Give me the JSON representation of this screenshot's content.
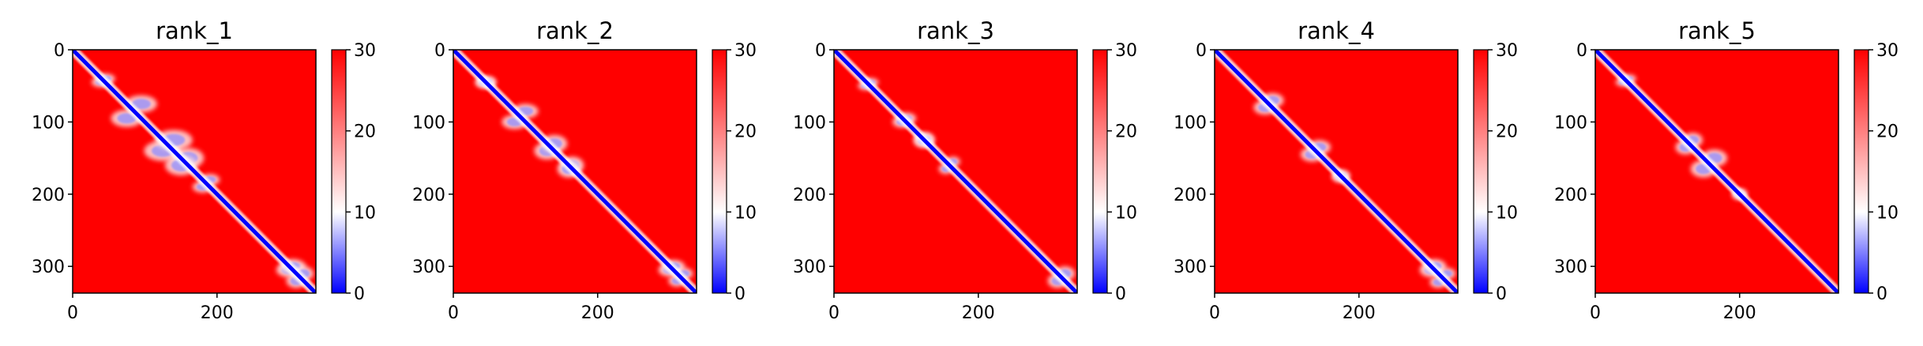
{
  "figure": {
    "colorbar_ticks": [
      "0",
      "10",
      "20",
      "30"
    ],
    "colormap": [
      "#0000ff",
      "#ffffff",
      "#ff0000"
    ]
  },
  "chart_data": [
    {
      "type": "heatmap",
      "title": "rank_1",
      "x_ticks": [
        0,
        200
      ],
      "y_ticks": [
        0,
        100,
        200,
        300
      ],
      "xlim": [
        0,
        337
      ],
      "ylim": [
        337,
        0
      ],
      "colorbar": {
        "vmin": 0,
        "vmax": 30,
        "ticks": [
          0,
          10,
          20,
          30
        ]
      },
      "low_regions": [
        {
          "x": 40,
          "y": 45,
          "rx": 14,
          "ry": 7
        },
        {
          "x": 75,
          "y": 95,
          "rx": 22,
          "ry": 12
        },
        {
          "x": 125,
          "y": 140,
          "rx": 26,
          "ry": 14
        },
        {
          "x": 160,
          "y": 150,
          "rx": 22,
          "ry": 14
        },
        {
          "x": 190,
          "y": 180,
          "rx": 14,
          "ry": 8
        },
        {
          "x": 300,
          "y": 305,
          "rx": 18,
          "ry": 10
        },
        {
          "x": 310,
          "y": 320,
          "rx": 14,
          "ry": 10
        }
      ]
    },
    {
      "type": "heatmap",
      "title": "rank_2",
      "x_ticks": [
        0,
        200
      ],
      "y_ticks": [
        0,
        100,
        200,
        300
      ],
      "xlim": [
        0,
        337
      ],
      "ylim": [
        337,
        0
      ],
      "colorbar": {
        "vmin": 0,
        "vmax": 30,
        "ticks": [
          0,
          10,
          20,
          30
        ]
      },
      "low_regions": [
        {
          "x": 45,
          "y": 45,
          "rx": 14,
          "ry": 8
        },
        {
          "x": 85,
          "y": 100,
          "rx": 18,
          "ry": 10
        },
        {
          "x": 130,
          "y": 140,
          "rx": 18,
          "ry": 12
        },
        {
          "x": 165,
          "y": 160,
          "rx": 16,
          "ry": 12
        },
        {
          "x": 300,
          "y": 305,
          "rx": 16,
          "ry": 9
        },
        {
          "x": 310,
          "y": 320,
          "rx": 12,
          "ry": 8
        }
      ]
    },
    {
      "type": "heatmap",
      "title": "rank_3",
      "x_ticks": [
        0,
        200
      ],
      "y_ticks": [
        0,
        100,
        200,
        300
      ],
      "xlim": [
        0,
        337
      ],
      "ylim": [
        337,
        0
      ],
      "colorbar": {
        "vmin": 0,
        "vmax": 30,
        "ticks": [
          0,
          10,
          20,
          30
        ]
      },
      "low_regions": [
        {
          "x": 45,
          "y": 50,
          "rx": 12,
          "ry": 6
        },
        {
          "x": 100,
          "y": 95,
          "rx": 14,
          "ry": 8
        },
        {
          "x": 125,
          "y": 125,
          "rx": 14,
          "ry": 10
        },
        {
          "x": 165,
          "y": 155,
          "rx": 10,
          "ry": 7
        },
        {
          "x": 310,
          "y": 320,
          "rx": 14,
          "ry": 10
        }
      ]
    },
    {
      "type": "heatmap",
      "title": "rank_4",
      "x_ticks": [
        0,
        200
      ],
      "y_ticks": [
        0,
        100,
        200,
        300
      ],
      "xlim": [
        0,
        337
      ],
      "ylim": [
        337,
        0
      ],
      "colorbar": {
        "vmin": 0,
        "vmax": 30,
        "ticks": [
          0,
          10,
          20,
          30
        ]
      },
      "low_regions": [
        {
          "x": 70,
          "y": 80,
          "rx": 16,
          "ry": 10
        },
        {
          "x": 135,
          "y": 145,
          "rx": 16,
          "ry": 10
        },
        {
          "x": 175,
          "y": 175,
          "rx": 12,
          "ry": 8
        },
        {
          "x": 300,
          "y": 305,
          "rx": 16,
          "ry": 10
        },
        {
          "x": 310,
          "y": 322,
          "rx": 12,
          "ry": 8
        }
      ]
    },
    {
      "type": "heatmap",
      "title": "rank_5",
      "x_ticks": [
        0,
        200
      ],
      "y_ticks": [
        0,
        100,
        200,
        300
      ],
      "xlim": [
        0,
        337
      ],
      "ylim": [
        337,
        0
      ],
      "colorbar": {
        "vmin": 0,
        "vmax": 30,
        "ticks": [
          0,
          10,
          20,
          30
        ]
      },
      "low_regions": [
        {
          "x": 40,
          "y": 45,
          "rx": 12,
          "ry": 6
        },
        {
          "x": 125,
          "y": 135,
          "rx": 14,
          "ry": 10
        },
        {
          "x": 165,
          "y": 150,
          "rx": 18,
          "ry": 12
        },
        {
          "x": 200,
          "y": 200,
          "rx": 10,
          "ry": 7
        }
      ]
    }
  ]
}
